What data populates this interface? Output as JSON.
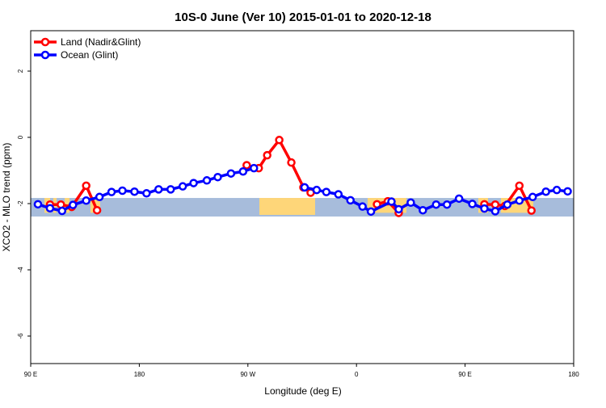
{
  "chart_data": {
    "type": "line",
    "title": "10S-0 June (Ver 10)   2015-01-01 to 2020-12-18",
    "xlabel": "Longitude (deg E)",
    "ylabel": "XCO2 - MLO trend (ppm)",
    "x_units_note": "unwrapped longitude, degrees east",
    "xlim": [
      90,
      540
    ],
    "ylim": [
      -6.83,
      3.22
    ],
    "x_ticks": [
      90,
      180,
      270,
      360,
      450,
      540
    ],
    "x_tick_labels": [
      "90 E",
      "180",
      "90 W",
      "0",
      "90 E",
      "180"
    ],
    "y_ticks": [
      2,
      0,
      -2,
      -4,
      -6
    ],
    "y_tick_labels": [
      "2",
      "0",
      "-2",
      "-4",
      "-6"
    ],
    "grid": false,
    "legend_position": "top-left",
    "map_band": [
      -2.39,
      -1.83
    ],
    "series": [
      {
        "name": "Land (Nadir&Glint)",
        "color": "#ff0000",
        "x": [
          106,
          115,
          124,
          136,
          145,
          269,
          279,
          286,
          296,
          306,
          316,
          322,
          377,
          386,
          395,
          466,
          475,
          483,
          495,
          505
        ],
        "y": [
          -2.03,
          -2.03,
          -2.1,
          -1.46,
          -2.2,
          -0.84,
          -0.93,
          -0.54,
          -0.08,
          -0.76,
          -1.51,
          -1.67,
          -2.02,
          -1.93,
          -2.28,
          -2.02,
          -2.03,
          -2.07,
          -1.46,
          -2.21
        ],
        "segments": [
          [
            0,
            4
          ],
          [
            5,
            11
          ],
          [
            12,
            14
          ],
          [
            15,
            19
          ]
        ]
      },
      {
        "name": "Ocean (Glint)",
        "color": "#0000ff",
        "x": [
          96,
          106,
          116,
          125,
          136,
          147,
          157,
          166,
          176,
          186,
          196,
          206,
          216,
          225,
          236,
          245,
          256,
          266,
          275,
          317,
          327,
          335,
          345,
          355,
          365,
          372,
          389,
          395,
          405,
          415,
          426,
          435,
          445,
          456,
          466,
          475,
          485,
          495,
          506,
          517,
          526,
          535
        ],
        "y": [
          -2.02,
          -2.14,
          -2.22,
          -2.04,
          -1.91,
          -1.8,
          -1.65,
          -1.61,
          -1.64,
          -1.69,
          -1.57,
          -1.57,
          -1.48,
          -1.38,
          -1.3,
          -1.2,
          -1.09,
          -1.03,
          -0.93,
          -1.51,
          -1.59,
          -1.65,
          -1.72,
          -1.9,
          -2.09,
          -2.24,
          -1.94,
          -2.17,
          -1.97,
          -2.2,
          -2.03,
          -2.03,
          -1.85,
          -2.01,
          -2.15,
          -2.23,
          -2.03,
          -1.91,
          -1.8,
          -1.64,
          -1.59,
          -1.63
        ],
        "segments": [
          [
            0,
            18
          ],
          [
            19,
            41
          ]
        ]
      }
    ],
    "colors": {
      "ocean": "#a7bcdb",
      "land": "#fed679"
    }
  }
}
